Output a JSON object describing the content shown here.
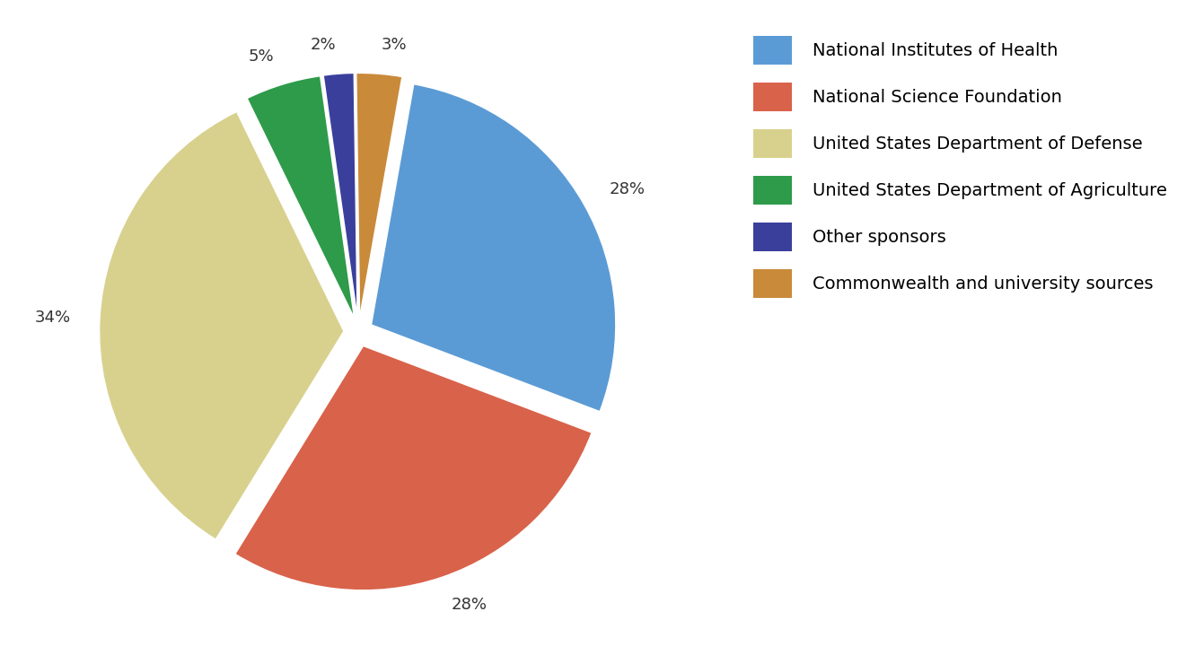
{
  "chart_data": {
    "type": "pie",
    "categories": [
      "National Institutes of Health",
      "National Science Foundation",
      "United States Department of Defense",
      "United States Department of Agriculture",
      "Other sponsors",
      "Commonwealth and university sources"
    ],
    "values": [
      28,
      28,
      34,
      5,
      2,
      3
    ],
    "value_labels": [
      "28%",
      "28%",
      "34%",
      "5%",
      "2%",
      "3%"
    ],
    "colors": [
      "#5b9bd5",
      "#d9624a",
      "#d8d18e",
      "#2e9b4a",
      "#3b3f9c",
      "#c98a3a"
    ],
    "data_labels": true,
    "legend": "upper right"
  }
}
